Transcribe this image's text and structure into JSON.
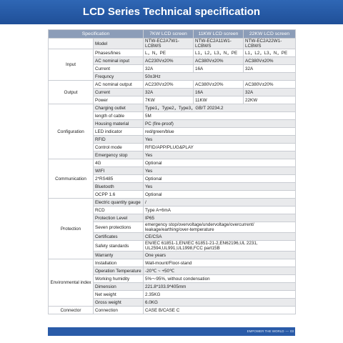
{
  "header": {
    "title": "LCD Series Technical specification"
  },
  "table": {
    "columns": [
      "Specification",
      "7KW LCD screen",
      "11KW LCD screen",
      "22KW LCD screen"
    ],
    "groups": [
      {
        "rows": [
          {
            "name": "Model",
            "values": [
              "NTW-EC2A7W1-LCBWS",
              "NTW-EC2A11W1-LCBWS",
              "NTW-EC2A22W1-LCBWS"
            ]
          }
        ]
      },
      {
        "label": "Input",
        "rows": [
          {
            "name": "Phases/lines",
            "values": [
              "L，N，PE",
              "L1，L2，L3，N，PE",
              "L1，L2，L3，N，PE"
            ]
          },
          {
            "name": "AC nominal input",
            "values": [
              "AC230V±20%",
              "AC380V±20%",
              "AC380V±20%"
            ]
          },
          {
            "name": "Current",
            "values": [
              "32A",
              "16A",
              "32A"
            ]
          },
          {
            "name": "Frequncy",
            "values": [
              "50±3Hz"
            ]
          }
        ]
      },
      {
        "label": "Output",
        "rows": [
          {
            "name": "AC nominal output",
            "values": [
              "AC230V±20%",
              "AC380V±20%",
              "AC380V±20%"
            ]
          },
          {
            "name": "Current",
            "values": [
              "32A",
              "16A",
              "32A"
            ]
          },
          {
            "name": "Power",
            "values": [
              "7KW",
              "11KW",
              "22KW"
            ]
          }
        ]
      },
      {
        "label": "Configuration",
        "rows": [
          {
            "name": "Charging outlet",
            "values": [
              "Type1，Type2，Type3，GB/T 20234.2"
            ]
          },
          {
            "name": "length of cable",
            "values": [
              "5M"
            ]
          },
          {
            "name": "Housing material",
            "values": [
              "PC (fire-proof)"
            ]
          },
          {
            "name": "LED indicator",
            "values": [
              "red/green/blue"
            ]
          },
          {
            "name": "RFID",
            "values": [
              "Yes"
            ]
          },
          {
            "name": "Control mode",
            "values": [
              "RFID/APP/PLUG&PLAY"
            ]
          },
          {
            "name": "Emergency stop",
            "values": [
              "Yes"
            ]
          }
        ]
      },
      {
        "label": "Communication",
        "rows": [
          {
            "name": "4G",
            "values": [
              "Optional"
            ]
          },
          {
            "name": "WIFI",
            "values": [
              "Yes"
            ]
          },
          {
            "name": "2*RS485",
            "values": [
              "Optional"
            ]
          },
          {
            "name": "Bluetooth",
            "values": [
              "Yes"
            ]
          },
          {
            "name": "OCPP 1.6",
            "values": [
              "Optional"
            ]
          }
        ]
      },
      {
        "label": "Protection",
        "rows": [
          {
            "name": "Electric quantity gauge",
            "values": [
              "/"
            ]
          },
          {
            "name": "RCD",
            "values": [
              "Type A+6mA"
            ]
          },
          {
            "name": "Protection Level",
            "values": [
              "IP65"
            ]
          },
          {
            "name": "Seven protections",
            "values": [
              "emergency stop/overvoltage/undervoltage/overcurrent/ leakage/earthing/over-temperature"
            ]
          },
          {
            "name": "Certificates",
            "values": [
              "CE/CSA"
            ]
          },
          {
            "name": "Safety standards",
            "values": [
              "EN/IEC 61851-1,EN/IEC 61851-21-2,EN62196,UL 2231, UL2594,UL991,UL1998,FCC part15B"
            ]
          },
          {
            "name": "Warranty",
            "values": [
              "One years"
            ]
          }
        ]
      },
      {
        "label": "Environmental index",
        "rows": [
          {
            "name": "Installation",
            "values": [
              "Wall-mount/Floor-stand"
            ]
          },
          {
            "name": "Operation Temperature",
            "values": [
              "-20℃ ~ +50℃"
            ]
          },
          {
            "name": "Working humidity",
            "values": [
              "5%～95%, without condensation"
            ]
          },
          {
            "name": "Dimension",
            "values": [
              "221.8*103.9*405mm"
            ]
          },
          {
            "name": "Net weight",
            "values": [
              "2.35KG"
            ]
          },
          {
            "name": "Gross weight",
            "values": [
              "6.0KG"
            ]
          }
        ]
      },
      {
        "label": "Connector",
        "rows": [
          {
            "name": "Connection",
            "values": [
              "CASE B/CASE C"
            ]
          }
        ]
      }
    ]
  },
  "footer": {
    "text": "EMPOWER THE WORLD",
    "page": "03"
  }
}
